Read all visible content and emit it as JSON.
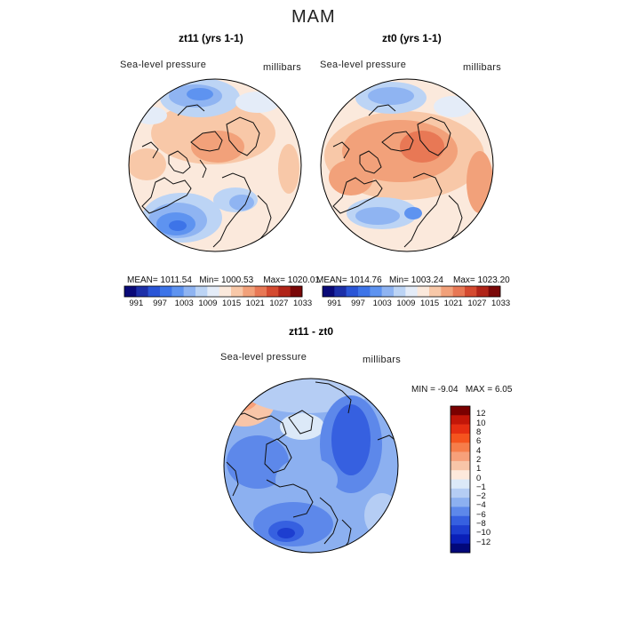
{
  "figure": {
    "title": "MAM"
  },
  "colorbar_colors_abs": [
    "#0a0a78",
    "#1c2fa8",
    "#2a55d6",
    "#3d74e8",
    "#5e93f0",
    "#8fb4f2",
    "#bcd4f5",
    "#e4ecf8",
    "#fbe9dc",
    "#f8c8a8",
    "#f2a17a",
    "#e87855",
    "#d44a30",
    "#b02418",
    "#7a0808"
  ],
  "colorbar_colors_diff": [
    "#7a0000",
    "#c21608",
    "#e52e12",
    "#f5541e",
    "#f67d4a",
    "#f7a07a",
    "#f8c5a8",
    "#fde9dc",
    "#dce9f8",
    "#b5cdf4",
    "#8cb0f0",
    "#5d88ea",
    "#3660e0",
    "#1d3ed0",
    "#0a1fb8",
    "#02087a"
  ],
  "chart_data": [
    {
      "type": "heatmap",
      "title": "zt11 (yrs 1-1)",
      "variable_label": "Sea-level pressure",
      "units_label": "millibars",
      "projection": "north polar stereographic",
      "stats": {
        "mean_label": "MEAN=",
        "mean": "1011.54",
        "min_label": "Min=",
        "min": "1000.53",
        "max_label": "Max=",
        "max": "1020.01"
      },
      "colorbar_ticks": [
        "991",
        "997",
        "1003",
        "1009",
        "1015",
        "1021",
        "1027",
        "1033"
      ]
    },
    {
      "type": "heatmap",
      "title": "zt0 (yrs 1-1)",
      "variable_label": "Sea-level pressure",
      "units_label": "millibars",
      "projection": "north polar stereographic",
      "stats": {
        "mean_label": "MEAN=",
        "mean": "1014.76",
        "min_label": "Min=",
        "min": "1003.24",
        "max_label": "Max=",
        "max": "1023.20"
      },
      "colorbar_ticks": [
        "991",
        "997",
        "1003",
        "1009",
        "1015",
        "1021",
        "1027",
        "1033"
      ]
    },
    {
      "type": "heatmap",
      "title": "zt11 - zt0",
      "variable_label": "Sea-level pressure",
      "units_label": "millibars",
      "projection": "north polar stereographic",
      "stats": {
        "min_label": "MIN =",
        "min": "-9.04",
        "max_label": "MAX =",
        "max": "6.05"
      },
      "colorbar_ticks": [
        "12",
        "10",
        "8",
        "6",
        "4",
        "2",
        "1",
        "0",
        "−1",
        "−2",
        "−4",
        "−6",
        "−8",
        "−10",
        "−12"
      ]
    }
  ]
}
